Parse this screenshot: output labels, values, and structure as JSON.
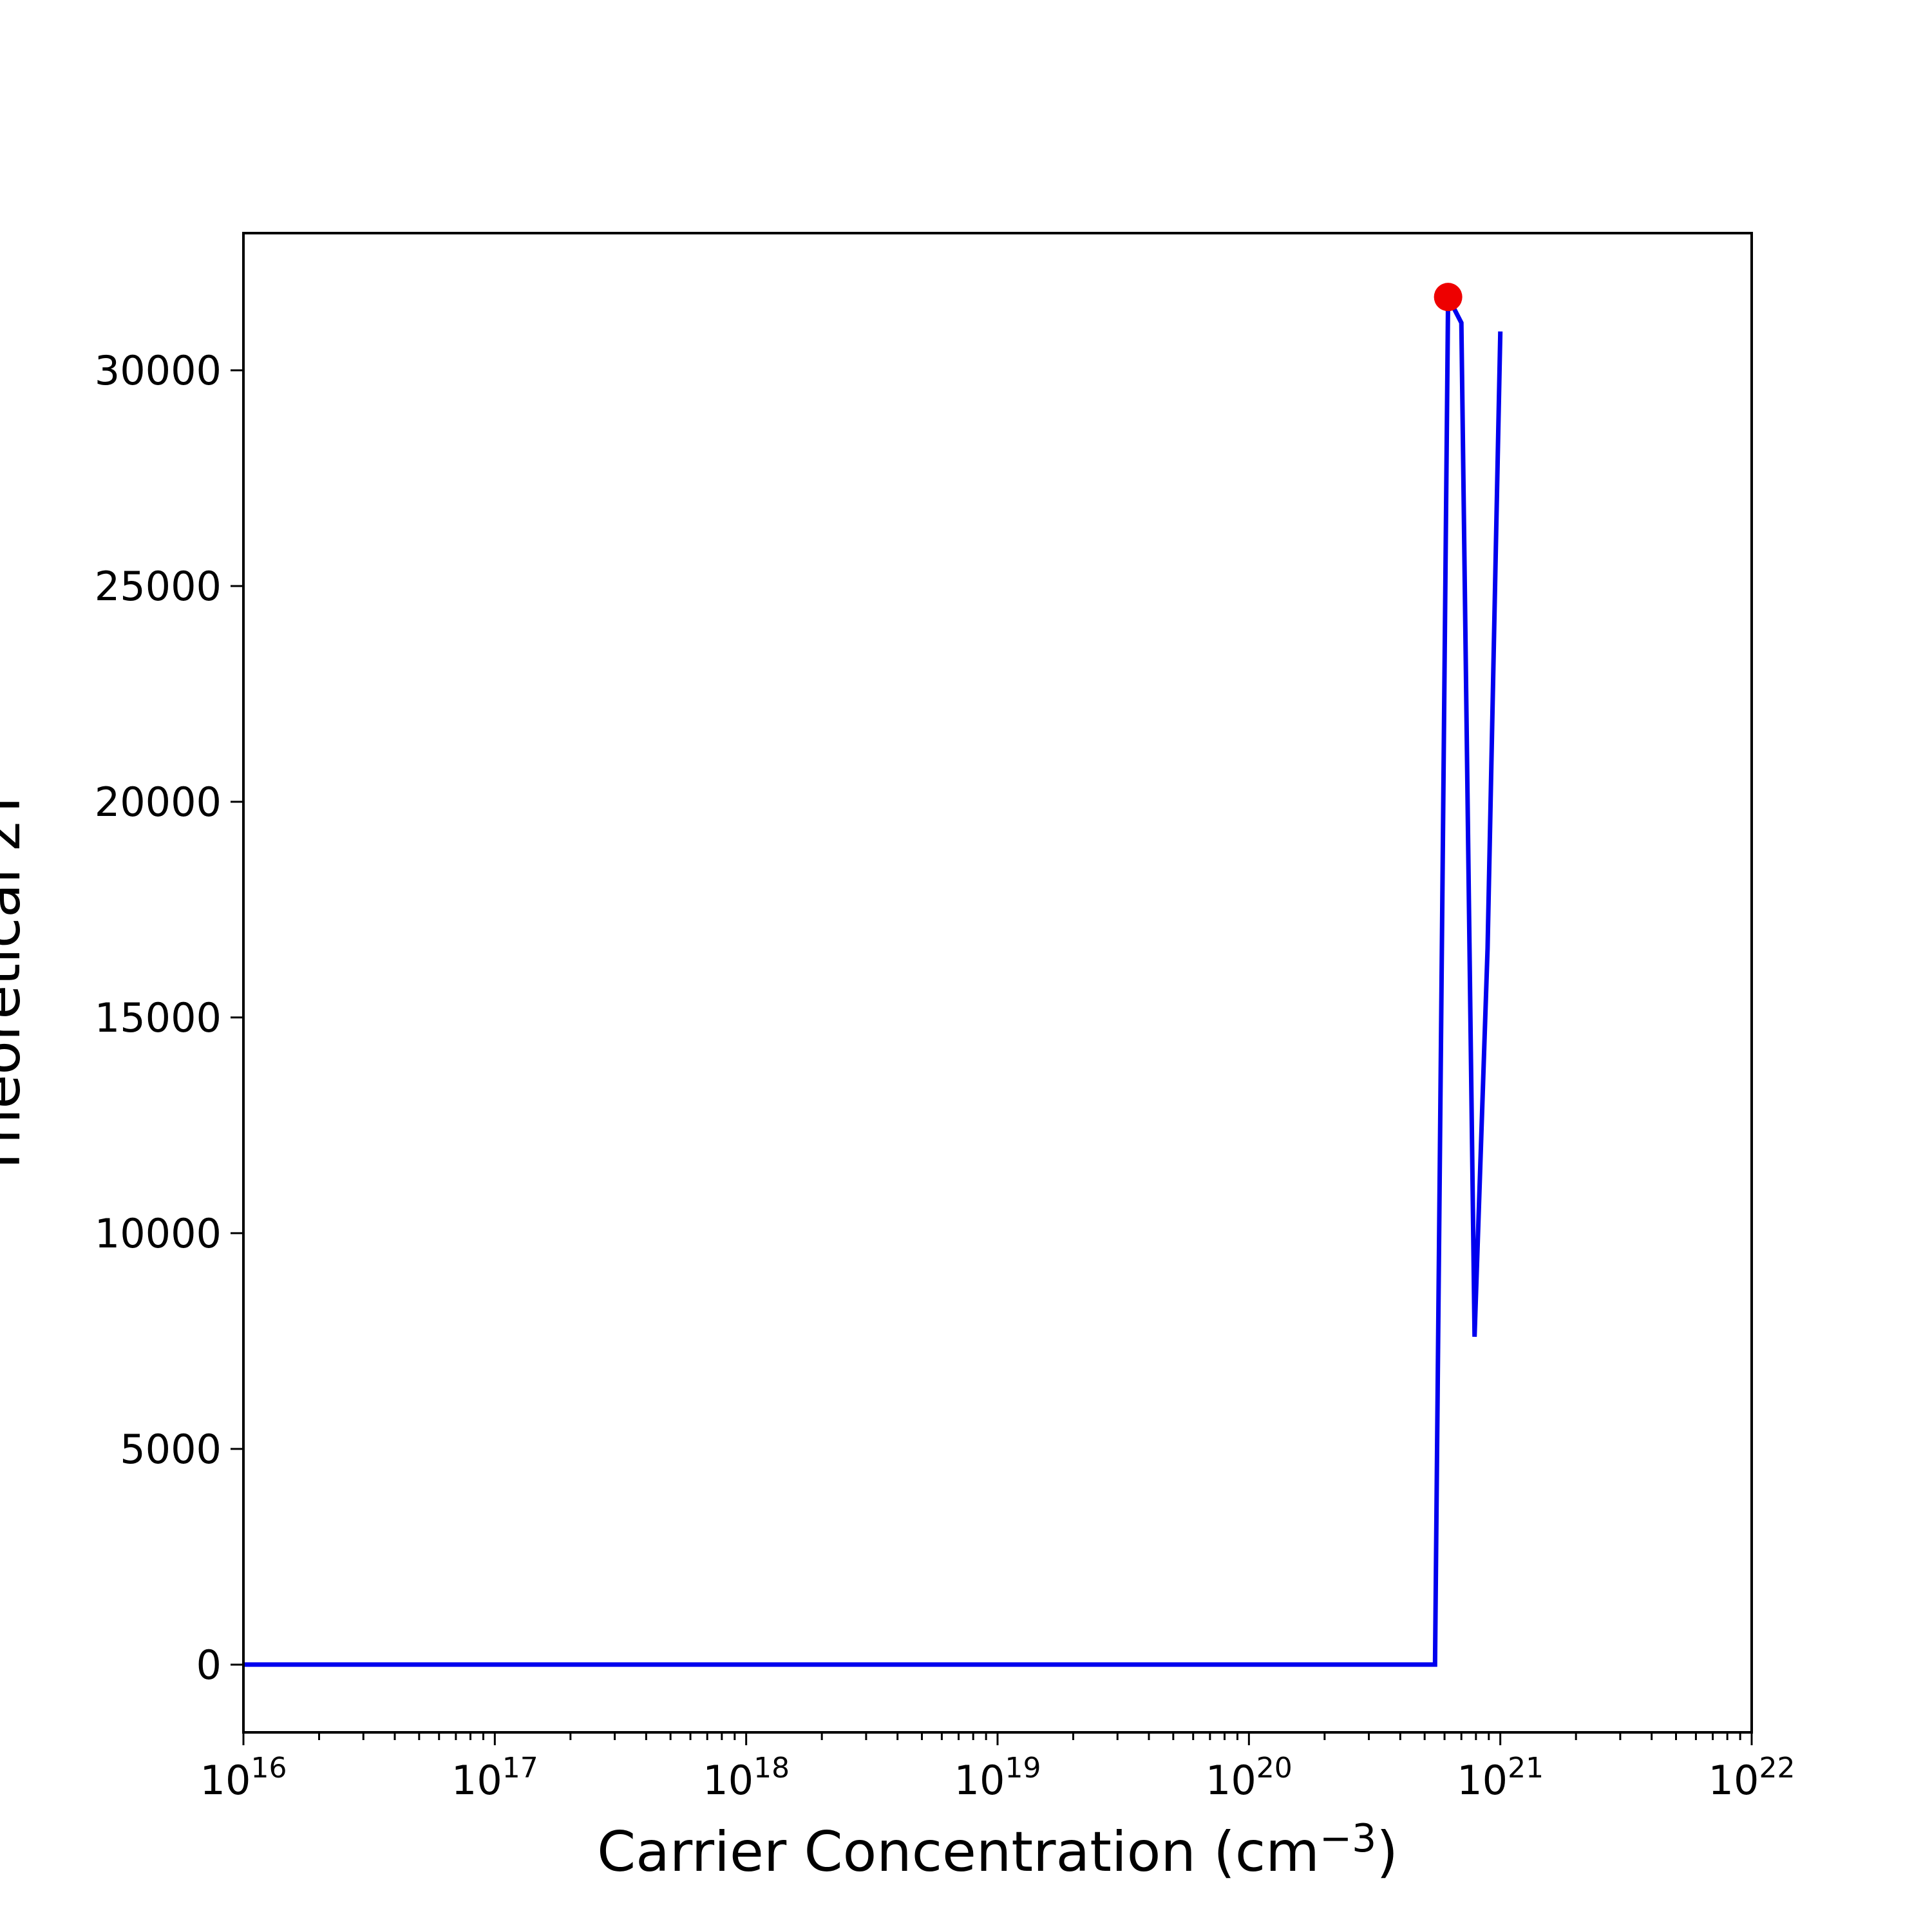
{
  "chart_data": {
    "type": "line",
    "title": "",
    "xlabel": {
      "prefix": "Carrier Concentration (cm",
      "superscript": "−3",
      "suffix": ")"
    },
    "ylabel": "Theoretical zT",
    "x_scale": "log",
    "xlim": [
      1e+16,
      1e+22
    ],
    "ylim": [
      -1570,
      33180
    ],
    "x_ticks": [
      {
        "base": "10",
        "exp": "16",
        "value": 1e+16
      },
      {
        "base": "10",
        "exp": "17",
        "value": 1e+17
      },
      {
        "base": "10",
        "exp": "18",
        "value": 1e+18
      },
      {
        "base": "10",
        "exp": "19",
        "value": 1e+19
      },
      {
        "base": "10",
        "exp": "20",
        "value": 1e+20
      },
      {
        "base": "10",
        "exp": "21",
        "value": 1e+21
      },
      {
        "base": "10",
        "exp": "22",
        "value": 1e+22
      }
    ],
    "y_ticks": [
      {
        "label": "0",
        "value": 0
      },
      {
        "label": "5000",
        "value": 5000
      },
      {
        "label": "10000",
        "value": 10000
      },
      {
        "label": "15000",
        "value": 15000
      },
      {
        "label": "20000",
        "value": 20000
      },
      {
        "label": "25000",
        "value": 25000
      },
      {
        "label": "30000",
        "value": 30000
      }
    ],
    "grid": false,
    "series": [
      {
        "color": "#0000ee",
        "x": [
          1e+16,
          5.5e+20,
          6.2e+20,
          7e+20,
          7.9e+20,
          8.9e+20,
          1e+21
        ],
        "y": [
          0,
          0,
          31700,
          31100,
          7600,
          16600,
          30900
        ]
      }
    ],
    "highlight_point": {
      "color": "#ee0000",
      "x": 6.2e+20,
      "y": 31700
    }
  }
}
